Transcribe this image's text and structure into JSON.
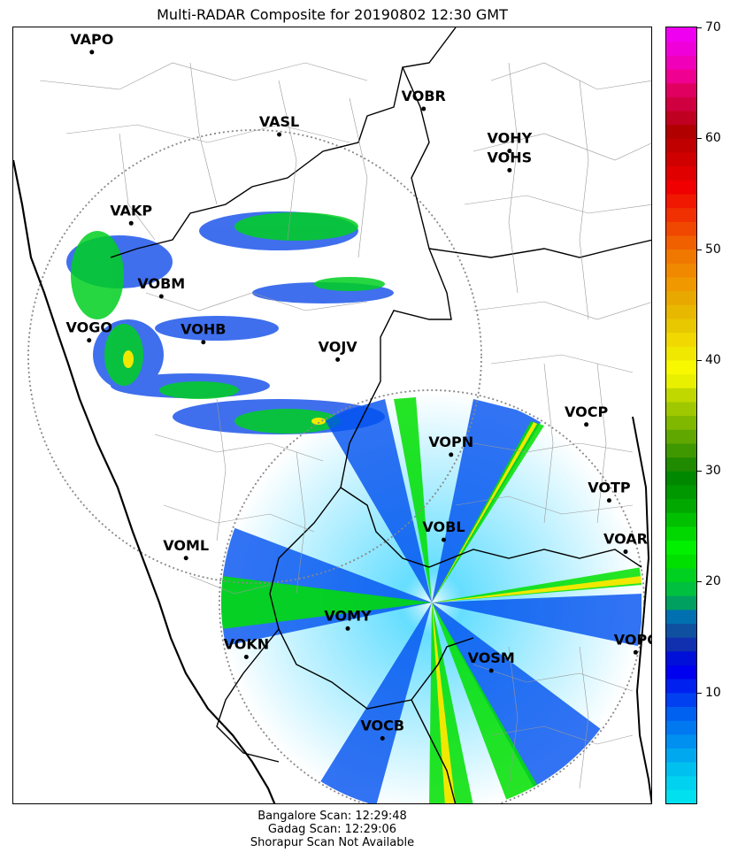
{
  "title": "Multi-RADAR Composite for 20190802 12:30 GMT",
  "stations": [
    {
      "code": "VAPO",
      "lon": 73.86,
      "lat": 18.53
    },
    {
      "code": "VASL",
      "lon": 75.91,
      "lat": 17.63
    },
    {
      "code": "VOBR",
      "lon": 77.49,
      "lat": 17.91
    },
    {
      "code": "VOHY",
      "lon": 78.43,
      "lat": 17.45
    },
    {
      "code": "VOHS",
      "lon": 78.43,
      "lat": 17.24
    },
    {
      "code": "VAKP",
      "lon": 74.29,
      "lat": 16.66
    },
    {
      "code": "VOBM",
      "lon": 74.62,
      "lat": 15.86
    },
    {
      "code": "VOGO",
      "lon": 73.83,
      "lat": 15.38
    },
    {
      "code": "VOHB",
      "lon": 75.08,
      "lat": 15.36
    },
    {
      "code": "VOJV",
      "lon": 76.55,
      "lat": 15.17
    },
    {
      "code": "VOCP",
      "lon": 79.27,
      "lat": 14.46
    },
    {
      "code": "VOPN",
      "lon": 77.79,
      "lat": 14.13
    },
    {
      "code": "VOTP",
      "lon": 79.52,
      "lat": 13.63
    },
    {
      "code": "VOBL",
      "lon": 77.71,
      "lat": 13.2
    },
    {
      "code": "VOAR",
      "lon": 79.7,
      "lat": 13.07
    },
    {
      "code": "VOML",
      "lon": 74.89,
      "lat": 13.0
    },
    {
      "code": "VOMY",
      "lon": 76.66,
      "lat": 12.23
    },
    {
      "code": "VOKN",
      "lon": 75.55,
      "lat": 11.92
    },
    {
      "code": "VOPC",
      "lon": 79.81,
      "lat": 11.97
    },
    {
      "code": "VOSM",
      "lon": 78.23,
      "lat": 11.77
    },
    {
      "code": "VOCB",
      "lon": 77.04,
      "lat": 11.03
    }
  ],
  "colorbar": {
    "min": 0,
    "max": 70,
    "ticks": [
      "10",
      "20",
      "30",
      "40",
      "50",
      "60",
      "70"
    ],
    "colors": [
      "#00e0ee",
      "#00d2f0",
      "#00c0f0",
      "#00a8f0",
      "#0090f0",
      "#0078f0",
      "#0060f0",
      "#0040f0",
      "#0020f0",
      "#0000f0",
      "#0010d8",
      "#1030b0",
      "#1050a0",
      "#0070b0",
      "#00a060",
      "#00c040",
      "#00d020",
      "#00e000",
      "#00f000",
      "#00d800",
      "#00c000",
      "#00a800",
      "#009800",
      "#008800",
      "#208a00",
      "#409800",
      "#60a800",
      "#80b800",
      "#a0c800",
      "#c0d800",
      "#e8f000",
      "#f8f800",
      "#f0e800",
      "#f0d800",
      "#e8c800",
      "#e8b800",
      "#e8a800",
      "#f09800",
      "#f08800",
      "#f07800",
      "#f06000",
      "#f04800",
      "#f03000",
      "#f01800",
      "#f00000",
      "#e00000",
      "#d00000",
      "#c00000",
      "#b00000",
      "#c00020",
      "#d00040",
      "#e00060",
      "#f00090",
      "#f000b8",
      "#f000d8",
      "#f000f0"
    ]
  },
  "footer": {
    "line1": "Bangalore Scan: 12:29:48",
    "line2": "Gadag Scan: 12:29:06",
    "line3": "Shorapur Scan Not Available"
  }
}
